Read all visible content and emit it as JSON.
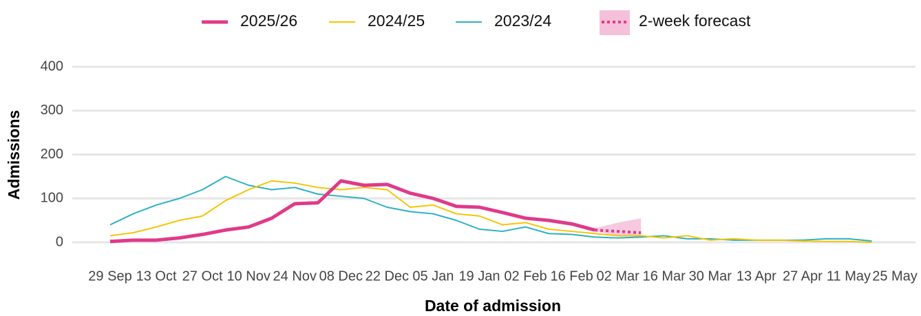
{
  "chart_data": {
    "type": "line",
    "x_label": "Date of admission",
    "y_label": "Admissions",
    "x": [
      "29 Sep",
      null,
      "13 Oct",
      null,
      "27 Oct",
      null,
      "10 Nov",
      null,
      "24 Nov",
      null,
      "08 Dec",
      null,
      "22 Dec",
      null,
      "05 Jan",
      null,
      "19 Jan",
      null,
      "02 Feb",
      null,
      "16 Feb",
      null,
      "02 Mar",
      null,
      "16 Mar",
      null,
      "30 Mar",
      null,
      "13 Apr",
      null,
      "27 Apr",
      null,
      "11 May",
      null,
      "25 May"
    ],
    "ylim": [
      0,
      400
    ],
    "yticks": [
      0,
      100,
      200,
      300,
      400
    ],
    "grid": true,
    "series": [
      {
        "name": "2025/26",
        "color": "#e03a8a",
        "width": 5,
        "values": [
          2,
          5,
          5,
          10,
          18,
          28,
          35,
          55,
          88,
          90,
          140,
          130,
          132,
          112,
          100,
          82,
          80,
          68,
          55,
          50,
          42,
          28,
          null,
          null,
          null,
          null,
          null,
          null,
          null,
          null,
          null,
          null,
          null,
          null,
          null
        ]
      },
      {
        "name": "2024/25",
        "color": "#f5c400",
        "width": 2,
        "values": [
          15,
          22,
          35,
          50,
          60,
          95,
          120,
          140,
          135,
          125,
          120,
          125,
          120,
          80,
          85,
          65,
          60,
          40,
          45,
          30,
          25,
          20,
          15,
          15,
          10,
          15,
          5,
          8,
          5,
          5,
          3,
          2,
          2,
          0,
          null
        ]
      },
      {
        "name": "2023/24",
        "color": "#2ab0c5",
        "width": 2,
        "values": [
          40,
          65,
          85,
          100,
          120,
          150,
          130,
          120,
          125,
          110,
          105,
          100,
          80,
          70,
          65,
          50,
          30,
          25,
          35,
          20,
          18,
          12,
          10,
          12,
          15,
          8,
          8,
          5,
          5,
          5,
          5,
          8,
          8,
          3,
          null
        ]
      }
    ],
    "forecast": {
      "name": "2-week forecast",
      "color": "#e03a8a",
      "band_color": "#f5c0da",
      "values": [
        null,
        null,
        null,
        null,
        null,
        null,
        null,
        null,
        null,
        null,
        null,
        null,
        null,
        null,
        null,
        null,
        null,
        null,
        null,
        null,
        null,
        28,
        25,
        22,
        null,
        null,
        null,
        null,
        null,
        null,
        null,
        null,
        null,
        null,
        null
      ],
      "lower": [
        null,
        null,
        null,
        null,
        null,
        null,
        null,
        null,
        null,
        null,
        null,
        null,
        null,
        null,
        null,
        null,
        null,
        null,
        null,
        null,
        null,
        25,
        15,
        12,
        null,
        null,
        null,
        null,
        null,
        null,
        null,
        null,
        null,
        null,
        null
      ],
      "upper": [
        null,
        null,
        null,
        null,
        null,
        null,
        null,
        null,
        null,
        null,
        null,
        null,
        null,
        null,
        null,
        null,
        null,
        null,
        null,
        null,
        null,
        32,
        45,
        55,
        null,
        null,
        null,
        null,
        null,
        null,
        null,
        null,
        null,
        null,
        null
      ]
    }
  }
}
